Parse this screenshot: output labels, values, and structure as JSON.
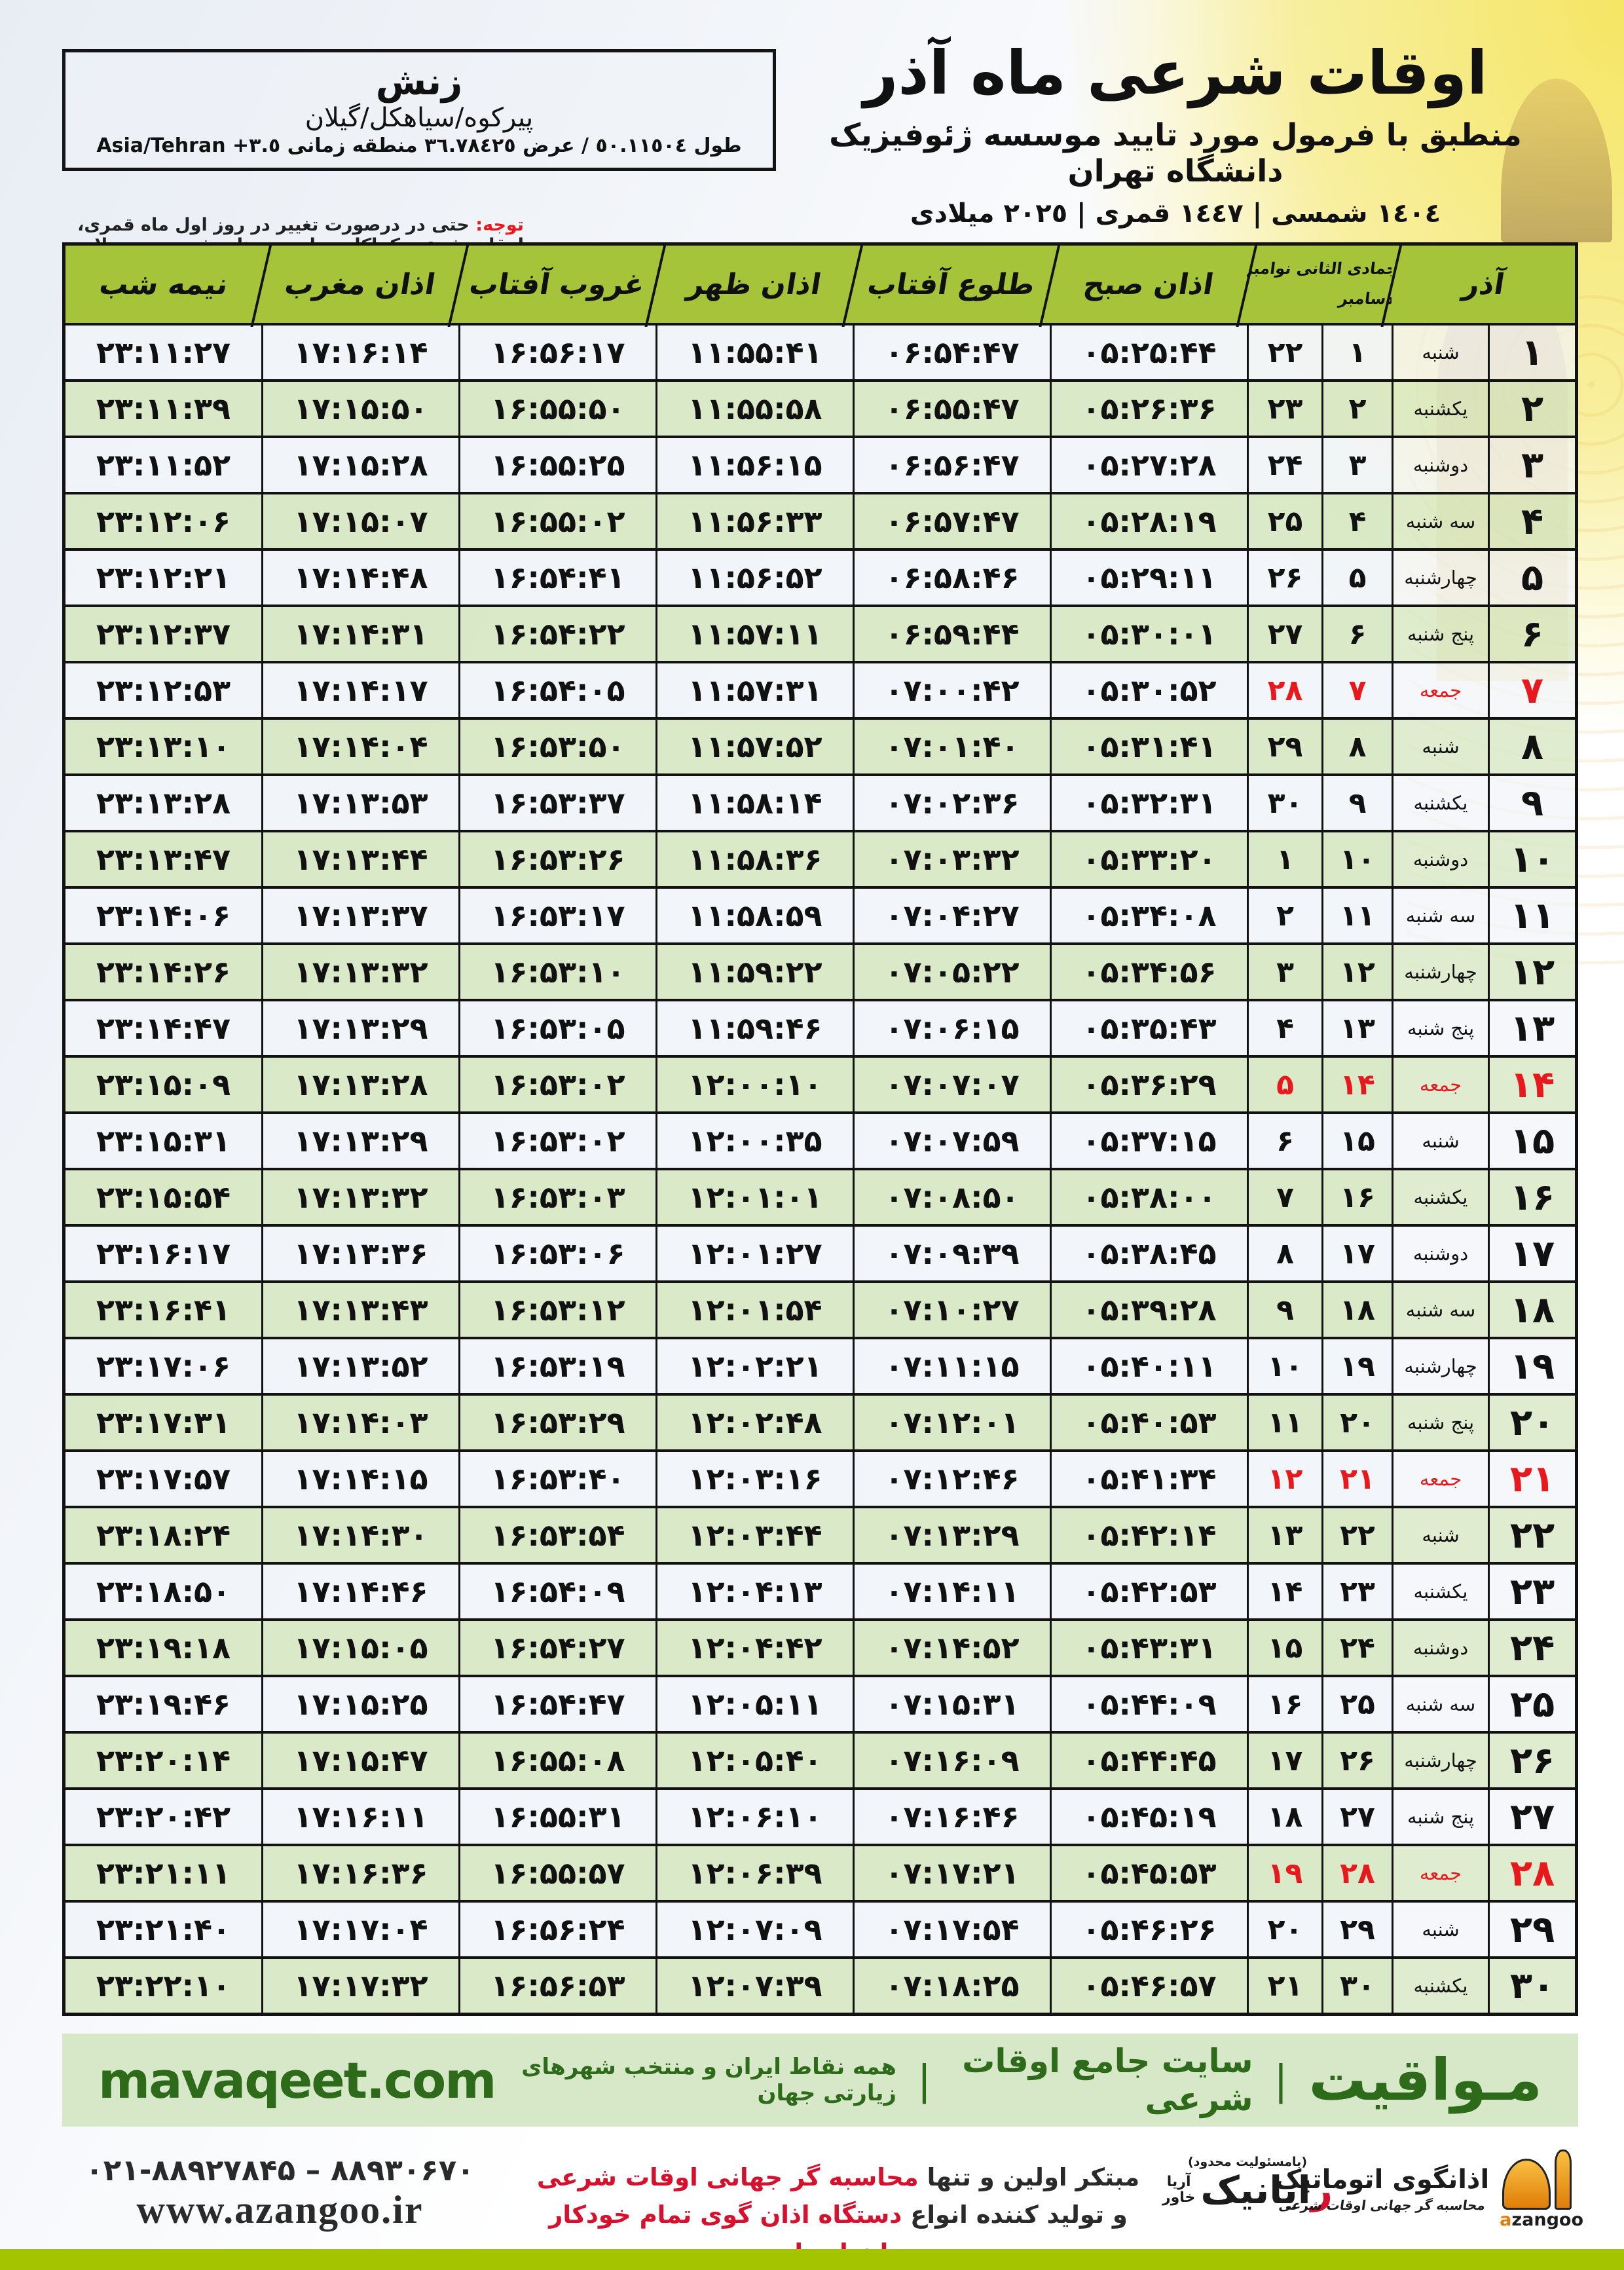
{
  "header": {
    "title": "اوقات شرعی ماه آذر",
    "subtitle": "منطبق با فرمول مورد تایید موسسه ژئوفیزیک دانشگاه تهران",
    "years": "١٤٠٤ شمسی | ١٤٤٧ قمری | ٢٠٢٥ میلادی"
  },
  "location": {
    "name": "زنش",
    "region": "پیرکوه/سیاهکل/گیلان",
    "coords": "طول ٥٠.١١٥٠٤ / عرض ٣٦.٧٨٤٢٥ منطقه زمانی",
    "timezone": "Asia/Tehran +٣.٥"
  },
  "note": {
    "label": "توجه:",
    "text": "حتی در درصورت تغییر در روز اول ماه قمری، اوقات شرعی کماکان برای روزهای شمسی و میلادی معتبر است."
  },
  "table": {
    "headers": {
      "month": "آذر",
      "hijri_greg_top": "جمادی الثانی نوامبر",
      "hijri_greg_bottom": "دسامبر",
      "fajr": "اذان صبح",
      "sunrise": "طلوع آفتاب",
      "dhuhr": "اذان ظهر",
      "sunset": "غروب آفتاب",
      "maghrib": "اذان مغرب",
      "midnight": "نیمه شب"
    },
    "rows": [
      {
        "d": 1,
        "w": "شنبه",
        "h": 1,
        "g": 22,
        "t": [
          "05:25:44",
          "06:54:47",
          "11:55:41",
          "16:56:17",
          "17:16:14",
          "23:11:27"
        ]
      },
      {
        "d": 2,
        "w": "یکشنبه",
        "h": 2,
        "g": 23,
        "t": [
          "05:26:36",
          "06:55:47",
          "11:55:58",
          "16:55:50",
          "17:15:50",
          "23:11:39"
        ]
      },
      {
        "d": 3,
        "w": "دوشنبه",
        "h": 3,
        "g": 24,
        "t": [
          "05:27:28",
          "06:56:47",
          "11:56:15",
          "16:55:25",
          "17:15:28",
          "23:11:52"
        ]
      },
      {
        "d": 4,
        "w": "سه شنبه",
        "h": 4,
        "g": 25,
        "t": [
          "05:28:19",
          "06:57:47",
          "11:56:33",
          "16:55:02",
          "17:15:07",
          "23:12:06"
        ]
      },
      {
        "d": 5,
        "w": "چهارشنبه",
        "h": 5,
        "g": 26,
        "t": [
          "05:29:11",
          "06:58:46",
          "11:56:52",
          "16:54:41",
          "17:14:48",
          "23:12:21"
        ]
      },
      {
        "d": 6,
        "w": "پنج شنبه",
        "h": 6,
        "g": 27,
        "t": [
          "05:30:01",
          "06:59:44",
          "11:57:11",
          "16:54:22",
          "17:14:31",
          "23:12:37"
        ]
      },
      {
        "d": 7,
        "w": "جمعه",
        "h": 7,
        "g": 28,
        "t": [
          "05:30:52",
          "07:00:42",
          "11:57:31",
          "16:54:05",
          "17:14:17",
          "23:12:53"
        ]
      },
      {
        "d": 8,
        "w": "شنبه",
        "h": 8,
        "g": 29,
        "t": [
          "05:31:41",
          "07:01:40",
          "11:57:52",
          "16:53:50",
          "17:14:04",
          "23:13:10"
        ]
      },
      {
        "d": 9,
        "w": "یکشنبه",
        "h": 9,
        "g": 30,
        "t": [
          "05:32:31",
          "07:02:36",
          "11:58:14",
          "16:53:37",
          "17:13:53",
          "23:13:28"
        ]
      },
      {
        "d": 10,
        "w": "دوشنبه",
        "h": 10,
        "g": 1,
        "t": [
          "05:33:20",
          "07:03:32",
          "11:58:36",
          "16:53:26",
          "17:13:44",
          "23:13:47"
        ]
      },
      {
        "d": 11,
        "w": "سه شنبه",
        "h": 11,
        "g": 2,
        "t": [
          "05:34:08",
          "07:04:27",
          "11:58:59",
          "16:53:17",
          "17:13:37",
          "23:14:06"
        ]
      },
      {
        "d": 12,
        "w": "چهارشنبه",
        "h": 12,
        "g": 3,
        "t": [
          "05:34:56",
          "07:05:22",
          "11:59:22",
          "16:53:10",
          "17:13:32",
          "23:14:26"
        ]
      },
      {
        "d": 13,
        "w": "پنج شنبه",
        "h": 13,
        "g": 4,
        "t": [
          "05:35:43",
          "07:06:15",
          "11:59:46",
          "16:53:05",
          "17:13:29",
          "23:14:47"
        ]
      },
      {
        "d": 14,
        "w": "جمعه",
        "h": 14,
        "g": 5,
        "t": [
          "05:36:29",
          "07:07:07",
          "12:00:10",
          "16:53:02",
          "17:13:28",
          "23:15:09"
        ]
      },
      {
        "d": 15,
        "w": "شنبه",
        "h": 15,
        "g": 6,
        "t": [
          "05:37:15",
          "07:07:59",
          "12:00:35",
          "16:53:02",
          "17:13:29",
          "23:15:31"
        ]
      },
      {
        "d": 16,
        "w": "یکشنبه",
        "h": 16,
        "g": 7,
        "t": [
          "05:38:00",
          "07:08:50",
          "12:01:01",
          "16:53:03",
          "17:13:32",
          "23:15:54"
        ]
      },
      {
        "d": 17,
        "w": "دوشنبه",
        "h": 17,
        "g": 8,
        "t": [
          "05:38:45",
          "07:09:39",
          "12:01:27",
          "16:53:06",
          "17:13:36",
          "23:16:17"
        ]
      },
      {
        "d": 18,
        "w": "سه شنبه",
        "h": 18,
        "g": 9,
        "t": [
          "05:39:28",
          "07:10:27",
          "12:01:54",
          "16:53:12",
          "17:13:43",
          "23:16:41"
        ]
      },
      {
        "d": 19,
        "w": "چهارشنبه",
        "h": 19,
        "g": 10,
        "t": [
          "05:40:11",
          "07:11:15",
          "12:02:21",
          "16:53:19",
          "17:13:52",
          "23:17:06"
        ]
      },
      {
        "d": 20,
        "w": "پنج شنبه",
        "h": 20,
        "g": 11,
        "t": [
          "05:40:53",
          "07:12:01",
          "12:02:48",
          "16:53:29",
          "17:14:03",
          "23:17:31"
        ]
      },
      {
        "d": 21,
        "w": "جمعه",
        "h": 21,
        "g": 12,
        "t": [
          "05:41:34",
          "07:12:46",
          "12:03:16",
          "16:53:40",
          "17:14:15",
          "23:17:57"
        ]
      },
      {
        "d": 22,
        "w": "شنبه",
        "h": 22,
        "g": 13,
        "t": [
          "05:42:14",
          "07:13:29",
          "12:03:44",
          "16:53:54",
          "17:14:30",
          "23:18:24"
        ]
      },
      {
        "d": 23,
        "w": "یکشنبه",
        "h": 23,
        "g": 14,
        "t": [
          "05:42:53",
          "07:14:11",
          "12:04:13",
          "16:54:09",
          "17:14:46",
          "23:18:50"
        ]
      },
      {
        "d": 24,
        "w": "دوشنبه",
        "h": 24,
        "g": 15,
        "t": [
          "05:43:31",
          "07:14:52",
          "12:04:42",
          "16:54:27",
          "17:15:05",
          "23:19:18"
        ]
      },
      {
        "d": 25,
        "w": "سه شنبه",
        "h": 25,
        "g": 16,
        "t": [
          "05:44:09",
          "07:15:31",
          "12:05:11",
          "16:54:47",
          "17:15:25",
          "23:19:46"
        ]
      },
      {
        "d": 26,
        "w": "چهارشنبه",
        "h": 26,
        "g": 17,
        "t": [
          "05:44:45",
          "07:16:09",
          "12:05:40",
          "16:55:08",
          "17:15:47",
          "23:20:14"
        ]
      },
      {
        "d": 27,
        "w": "پنج شنبه",
        "h": 27,
        "g": 18,
        "t": [
          "05:45:19",
          "07:16:46",
          "12:06:10",
          "16:55:31",
          "17:16:11",
          "23:20:42"
        ]
      },
      {
        "d": 28,
        "w": "جمعه",
        "h": 28,
        "g": 19,
        "t": [
          "05:45:53",
          "07:17:21",
          "12:06:39",
          "16:55:57",
          "17:16:36",
          "23:21:11"
        ]
      },
      {
        "d": 29,
        "w": "شنبه",
        "h": 29,
        "g": 20,
        "t": [
          "05:46:26",
          "07:17:54",
          "12:07:09",
          "16:56:24",
          "17:17:04",
          "23:21:40"
        ]
      },
      {
        "d": 30,
        "w": "یکشنبه",
        "h": 30,
        "g": 21,
        "t": [
          "05:46:57",
          "07:18:25",
          "12:07:39",
          "16:56:53",
          "17:17:32",
          "23:22:10"
        ]
      }
    ]
  },
  "banner": {
    "brand": "مـواقیت",
    "divider": "|",
    "tagline": "سایت جامع اوقات شرعی",
    "subtitle": "همه نقاط ایران و منتخب شهرهای زیارتی جهان",
    "site": "mavaqeet.com"
  },
  "bottom": {
    "phones": "۰۲۱-۸۸۹۲۷۸۴۵ – ۸۸۹۳۰۶۷۰",
    "website": "www.azangoo.ir",
    "promo_line1_black": "مبتکر اولین و تنها ",
    "promo_line1_red": "محاسبه گر جهانی اوقات شرعی",
    "promo_line2_black": "و تولید کننده انواع ",
    "promo_line2_red": "دستگاه اذان گوی تمام خودکار ماهواره ای",
    "rayanik_note": "(بامسئولیت محدود)",
    "rayanik_red": "ر",
    "rayanik_black": "ایانیک",
    "rayanik_side_top": "آریا",
    "rayanik_side_bottom": "خاور",
    "azangoo_fa": "اذانگوی اتوماتیک",
    "azangoo_tagline": "محاسبه گر جهانی اوقات شرعی",
    "azangoo_en_a": "a",
    "azangoo_en_rest": "zangoo"
  },
  "colors": {
    "header_green": "#a6c439",
    "row_green": "#d7e7c3",
    "row_white": "#f1f4f8",
    "friday_red": "#e8191c",
    "footer_bar_bg": "#d7e8c9",
    "footer_text_green": "#2d6a1a",
    "bottom_bar": "#a4c400"
  }
}
